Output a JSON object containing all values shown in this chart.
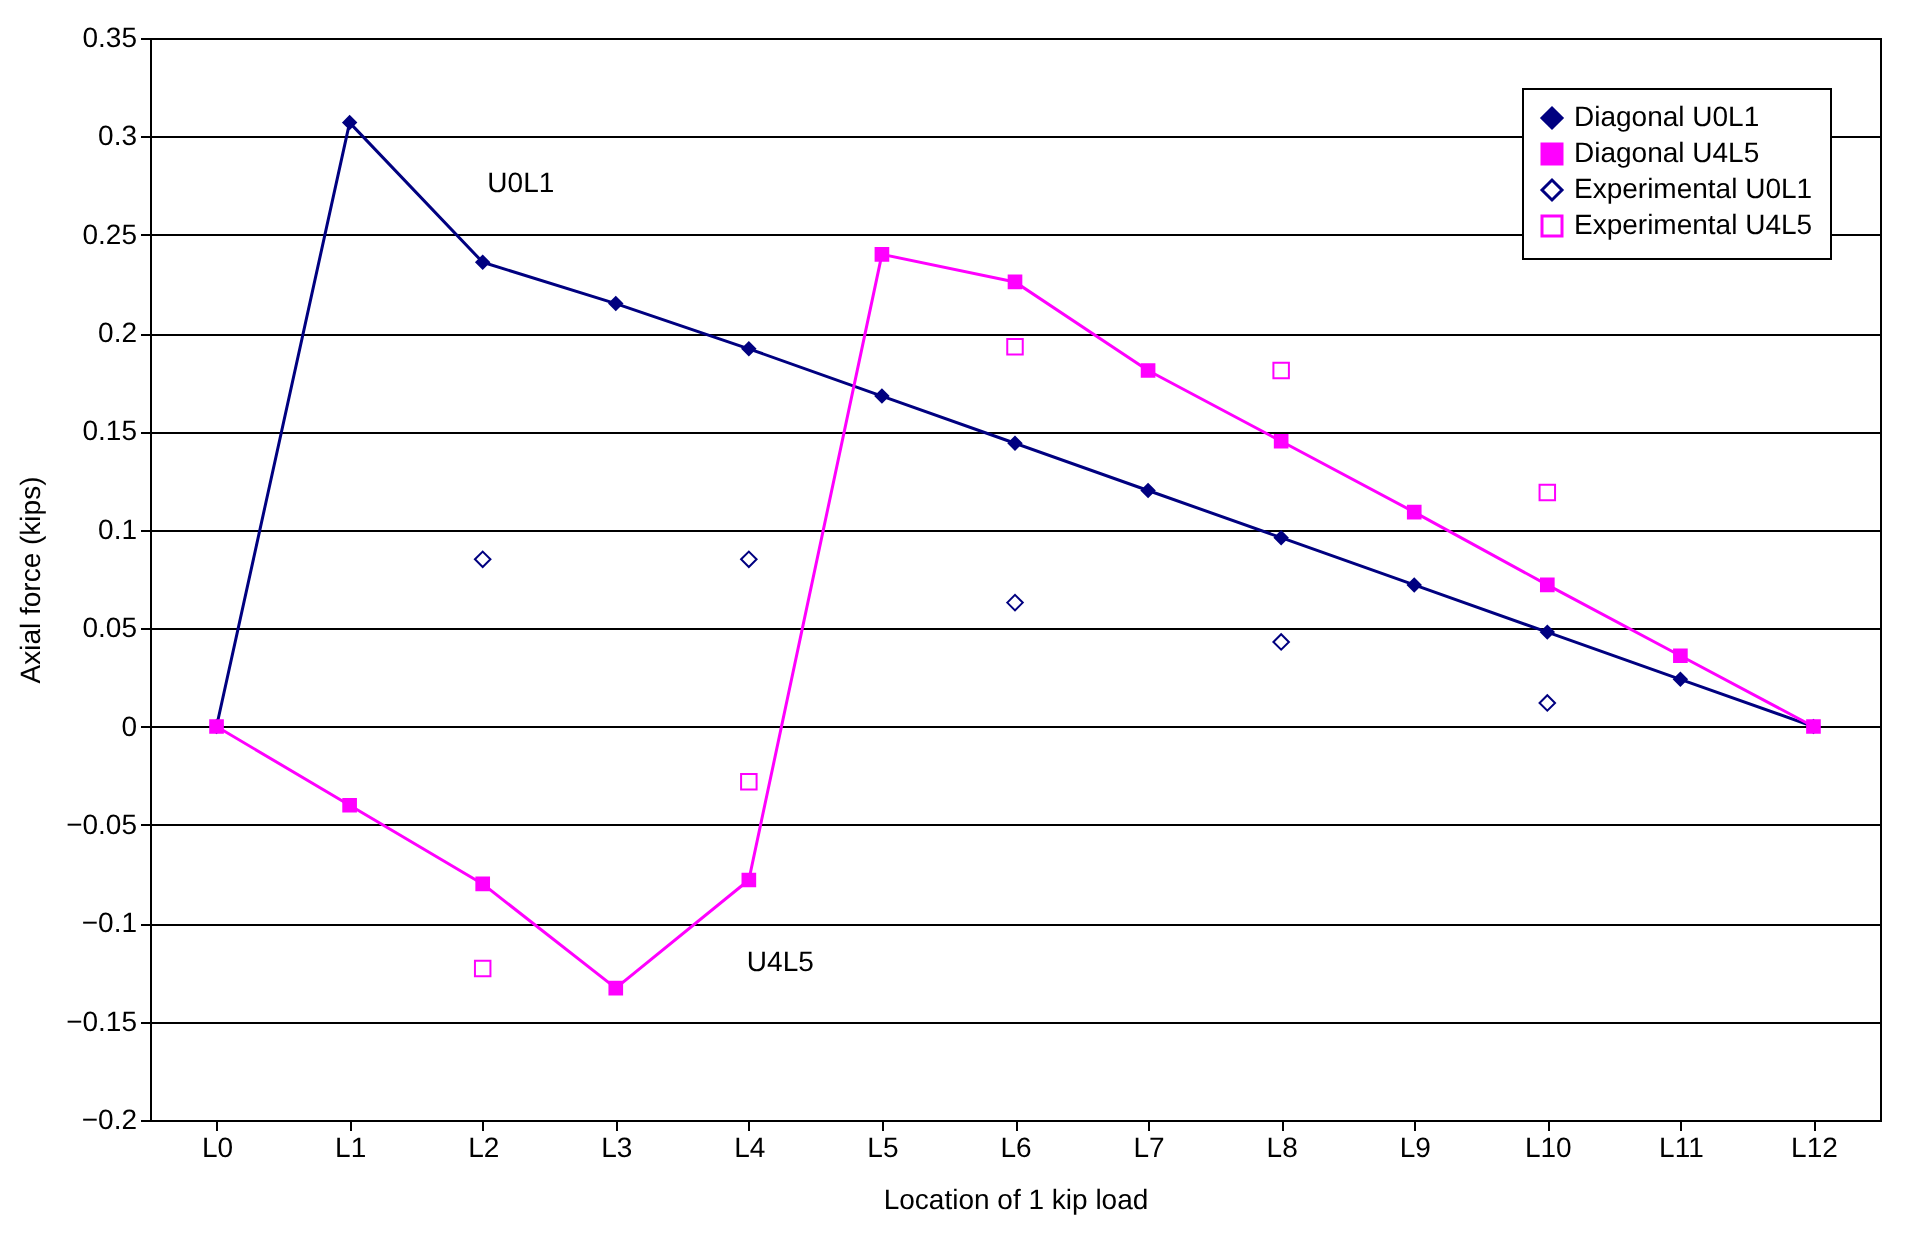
{
  "chart_data": {
    "type": "line",
    "xlabel": "Location of 1 kip load",
    "ylabel": "Axial force (kips)",
    "categories": [
      "L0",
      "L1",
      "L2",
      "L3",
      "L4",
      "L5",
      "L6",
      "L7",
      "L8",
      "L9",
      "L10",
      "L11",
      "L12"
    ],
    "series": [
      {
        "name": "Diagonal U0L1",
        "marker": "diamond",
        "color": "#000080",
        "values": [
          0,
          0.307,
          0.236,
          0.215,
          0.192,
          0.168,
          0.144,
          0.12,
          0.096,
          0.072,
          0.048,
          0.024,
          0
        ]
      },
      {
        "name": "Diagonal U4L5",
        "marker": "square",
        "color": "#ff00ff",
        "values": [
          0,
          -0.04,
          -0.08,
          -0.133,
          -0.078,
          0.24,
          0.226,
          0.181,
          0.145,
          0.109,
          0.072,
          0.036,
          0
        ]
      },
      {
        "name": "Experimental U0L1",
        "type": "scatter",
        "marker": "diamond",
        "color": "#000080",
        "values": [
          null,
          null,
          0.085,
          null,
          0.085,
          null,
          0.063,
          null,
          0.043,
          null,
          0.012,
          null,
          null
        ]
      },
      {
        "name": "Experimental U4L5",
        "type": "scatter",
        "marker": "square",
        "color": "#ff00ff",
        "values": [
          null,
          null,
          -0.123,
          null,
          -0.028,
          null,
          0.193,
          null,
          0.181,
          null,
          0.119,
          null,
          null
        ]
      }
    ],
    "annotations": [
      "U0L1",
      "U4L5"
    ],
    "ylim": [
      -0.2,
      0.35
    ],
    "yticks": [
      -0.2,
      -0.15,
      -0.1,
      -0.05,
      0,
      0.05,
      0.1,
      0.15,
      0.2,
      0.25,
      0.3,
      0.35
    ],
    "grid": "y",
    "legend": "top right"
  }
}
